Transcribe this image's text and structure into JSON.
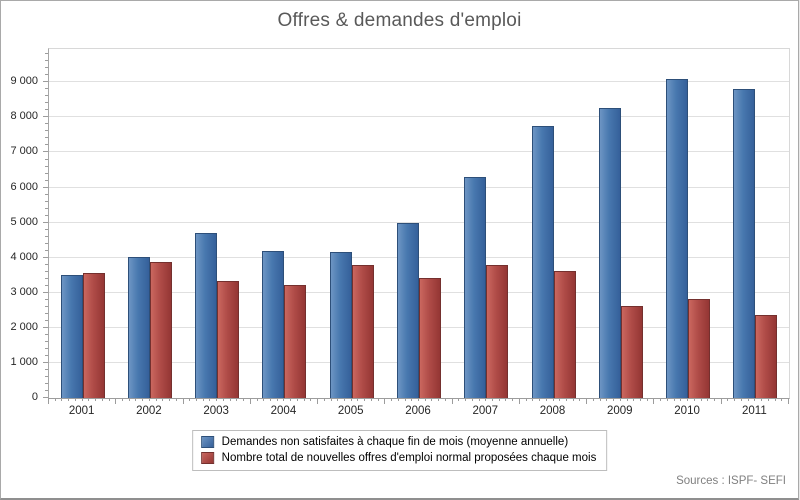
{
  "chart_title": "Offres & demandes d'emploi",
  "source_note": "Sources : ISPF- SEFI",
  "colors": {
    "series1_base": "#4F81BD",
    "series1_dark": "#2d4f79",
    "series2_base": "#C0504D",
    "series2_dark": "#74302e",
    "gridline": "#e0e0e0",
    "plot_border": "#d8d8d8",
    "axis_line": "#9c9c9c",
    "title_text": "#595959",
    "tick_text": "#262626",
    "source_text": "#808080"
  },
  "chart_data": {
    "type": "bar",
    "title": "Offres & demandes d'emploi",
    "categories": [
      "2001",
      "2002",
      "2003",
      "2004",
      "2005",
      "2006",
      "2007",
      "2008",
      "2009",
      "2010",
      "2011"
    ],
    "series": [
      {
        "name": "Demandes non satisfaites à chaque fin de mois (moyenne annuelle)",
        "color": "#4F81BD",
        "values": [
          3500,
          4020,
          4700,
          4190,
          4150,
          4980,
          6300,
          7750,
          8260,
          9100,
          8800
        ]
      },
      {
        "name": "Nombre total de nouvelles offres d'emploi normal proposées chaque mois",
        "color": "#C0504D",
        "values": [
          3560,
          3890,
          3330,
          3210,
          3790,
          3410,
          3800,
          3620,
          2630,
          2820,
          2360
        ]
      }
    ],
    "xlabel": "",
    "ylabel": "",
    "ylim": [
      0,
      9950
    ],
    "y_major_step": 1000,
    "y_minor_step": 200,
    "y_tick_labels": [
      "0",
      "1 000",
      "2 000",
      "3 000",
      "4 000",
      "5 000",
      "6 000",
      "7 000",
      "8 000",
      "9 000"
    ],
    "grid": true,
    "legend_position": "bottom"
  }
}
